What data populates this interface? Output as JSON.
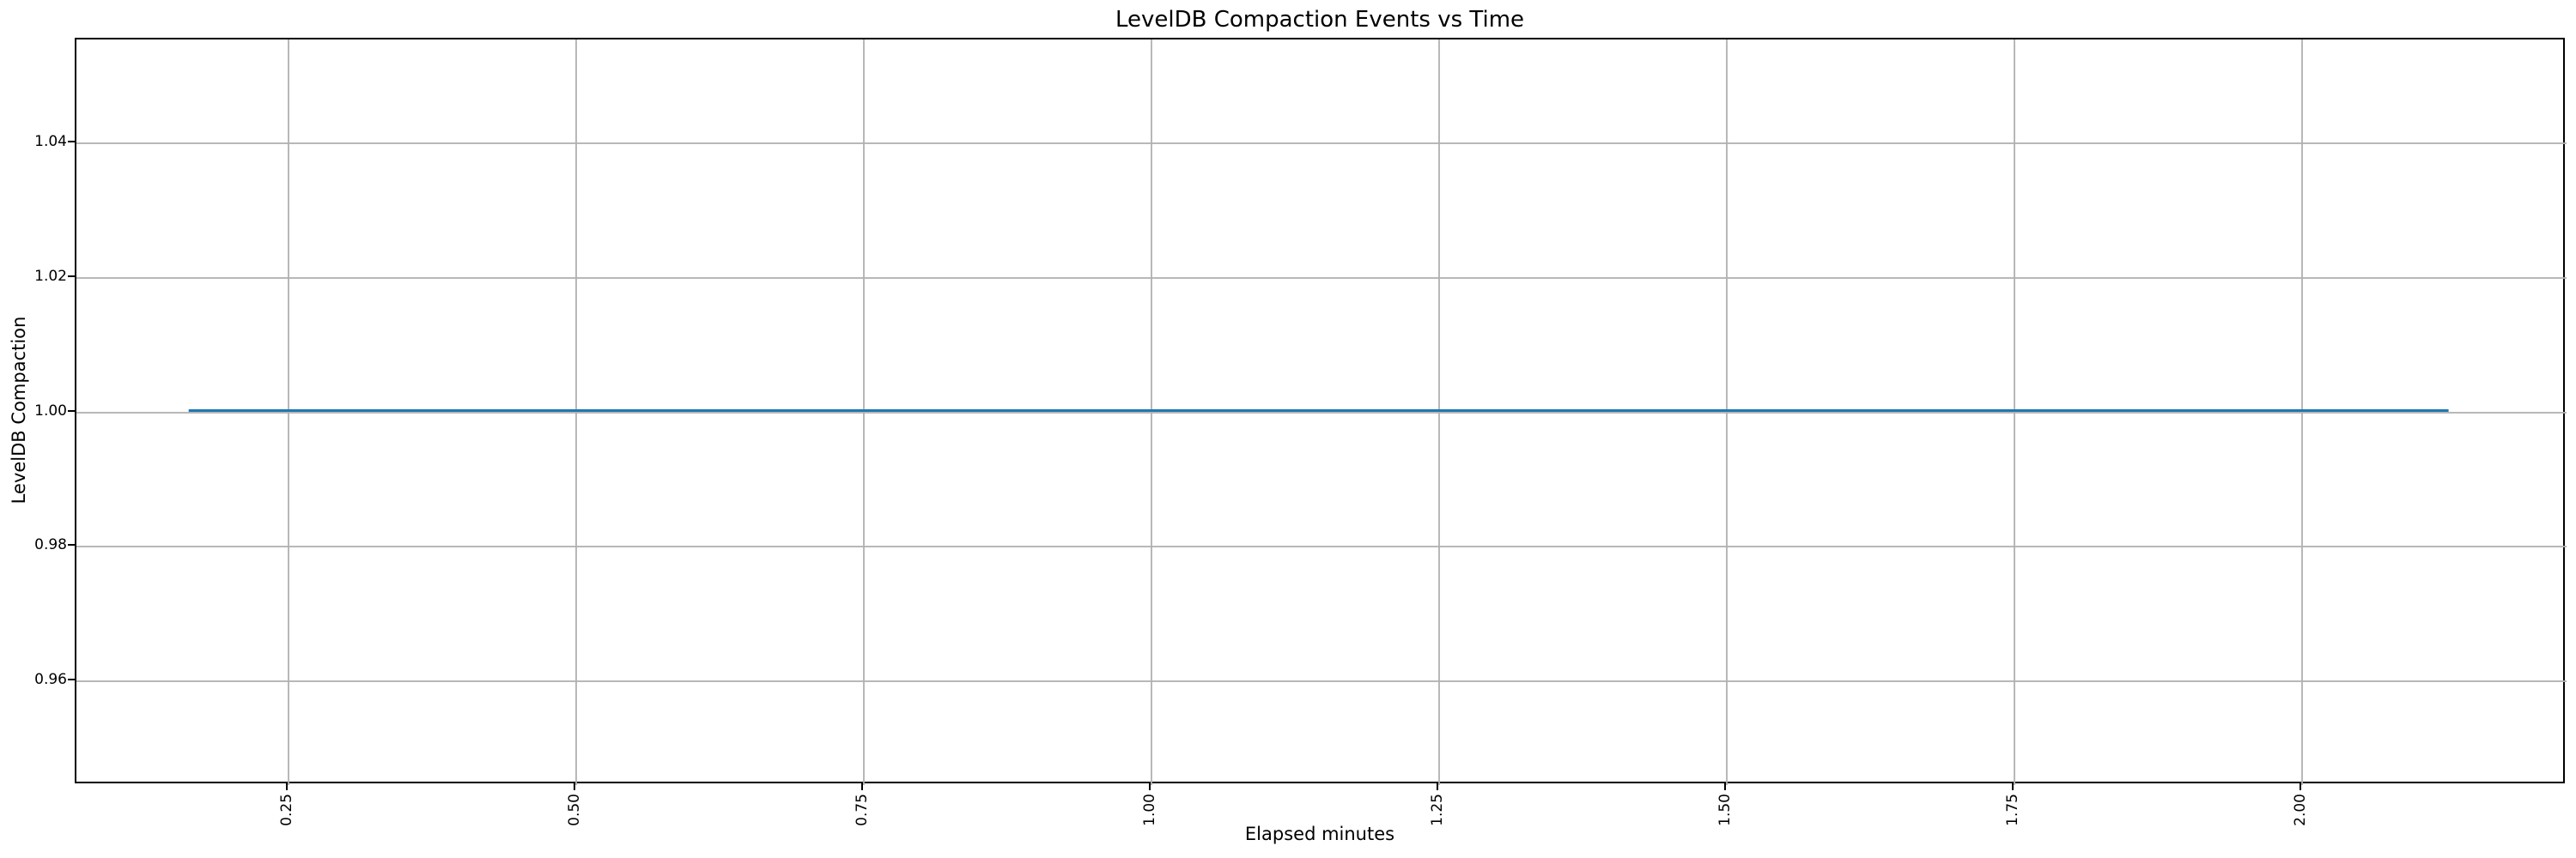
{
  "chart_data": {
    "type": "line",
    "title": "LevelDB Compaction Events vs Time",
    "xlabel": "Elapsed minutes",
    "ylabel": "LevelDB Compaction",
    "xlim": [
      0.066,
      2.23
    ],
    "ylim": [
      0.9445,
      1.0555
    ],
    "x_tick_values": [
      0.25,
      0.5,
      0.75,
      1.0,
      1.25,
      1.5,
      1.75,
      2.0
    ],
    "x_tick_labels": [
      "0.25",
      "0.50",
      "0.75",
      "1.00",
      "1.25",
      "1.50",
      "1.75",
      "2.00"
    ],
    "x_tick_rotation_deg": 90,
    "y_tick_values": [
      0.96,
      0.98,
      1.0,
      1.02,
      1.04
    ],
    "y_tick_labels": [
      "0.96",
      "0.98",
      "1.00",
      "1.02",
      "1.04"
    ],
    "grid": true,
    "legend": false,
    "series": [
      {
        "name": "LevelDB Compaction",
        "color": "#1f77b4",
        "x": [
          0.165,
          2.129
        ],
        "y": [
          1.0,
          1.0
        ],
        "note": "constant flat line at value 1.0 across entire elapsed-time range"
      }
    ],
    "colors": {
      "line": "#1f77b4",
      "grid": "#b0b0b0",
      "spine": "#000000",
      "text": "#000000",
      "background": "#ffffff"
    }
  }
}
